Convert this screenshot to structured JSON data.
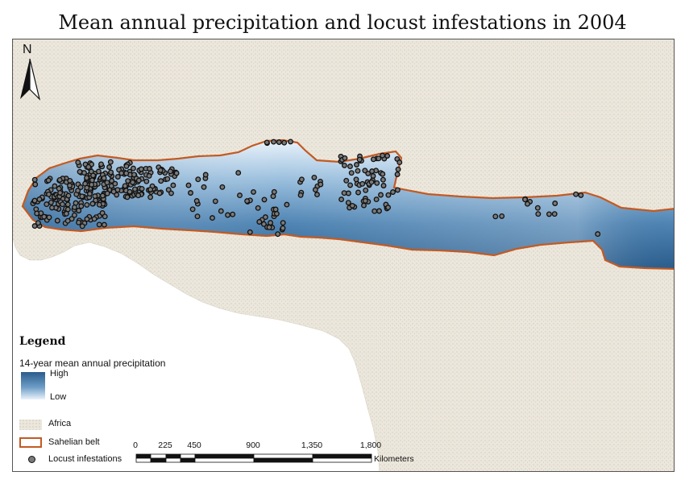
{
  "title": "Mean annual precipitation and locust infestations in 2004",
  "north_arrow": {
    "label": "N"
  },
  "legend": {
    "heading": "Legend",
    "precip_label": "14-year mean annual precipitation",
    "high_label": "High",
    "low_label": "Low",
    "africa_label": "Africa",
    "belt_label": "Sahelian belt",
    "locust_label": "Locust infestations"
  },
  "scale_bar": {
    "ticks": [
      "0",
      "225",
      "450",
      "900",
      "1,350",
      "1,800"
    ],
    "unit": "Kilometers"
  },
  "colors": {
    "land": "#ece7dc",
    "ocean": "#ffffff",
    "belt_outline": "#c35a22",
    "precip_high": "#2a5c8c",
    "precip_low": "#eaf3fb",
    "locust_fill": "#7a7a7a",
    "locust_stroke": "#111111"
  }
}
